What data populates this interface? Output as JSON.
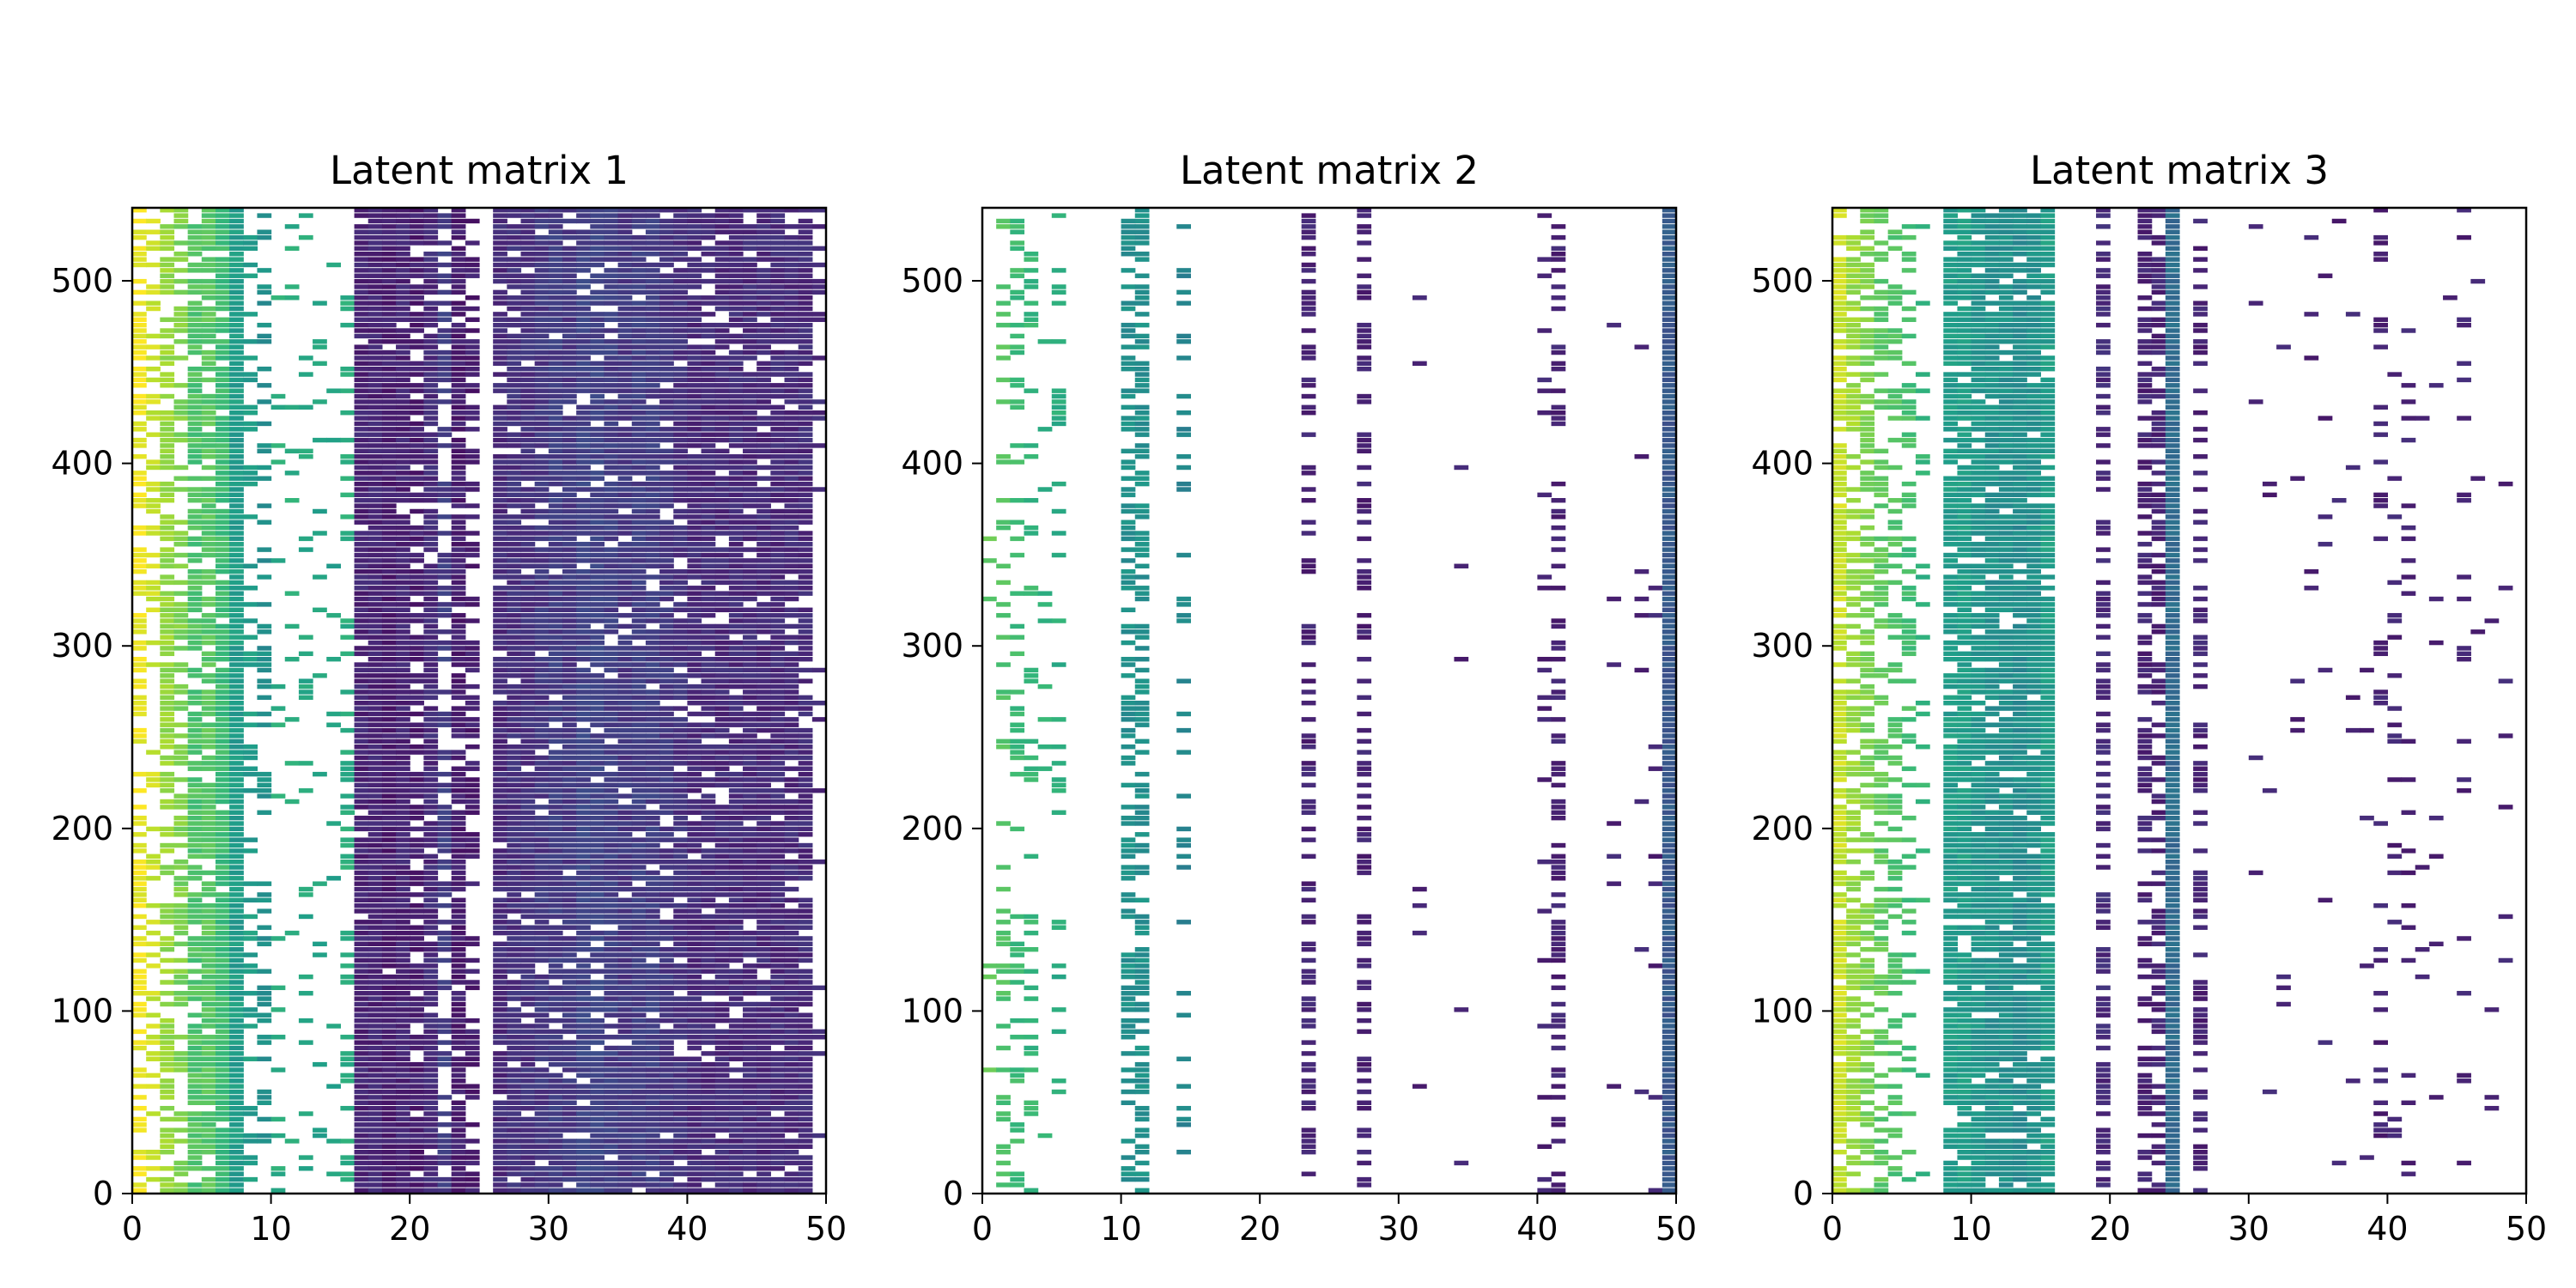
{
  "chart_data": [
    {
      "type": "heatmap",
      "title": "Latent matrix 1",
      "xlim": [
        0,
        50
      ],
      "ylim": [
        0,
        540
      ],
      "xticks": [
        0,
        10,
        20,
        30,
        40,
        50
      ],
      "yticks": [
        0,
        100,
        200,
        300,
        400,
        500
      ],
      "grid": false,
      "colormap": "viridis",
      "missing_color": "#ffffff",
      "column_values": [
        0.98,
        0.92,
        0.84,
        0.8,
        0.72,
        0.74,
        0.68,
        0.55,
        0.55,
        0.5,
        0.62,
        0.62,
        0.6,
        0.58,
        0.58,
        0.62,
        0.1,
        0.1,
        0.08,
        0.1,
        0.08,
        0.12,
        0.18,
        0.08,
        0.08,
        0.08,
        0.12,
        0.14,
        0.14,
        0.16,
        0.18,
        0.16,
        0.2,
        0.2,
        0.18,
        0.16,
        0.18,
        0.18,
        0.16,
        0.14,
        0.12,
        0.12,
        0.12,
        0.12,
        0.12,
        0.12,
        0.12,
        0.12,
        0.12,
        0.12
      ],
      "column_density": [
        0.65,
        0.45,
        0.75,
        0.55,
        0.85,
        0.85,
        0.95,
        1.0,
        0.3,
        0.3,
        0.12,
        0.1,
        0.12,
        0.12,
        0.1,
        0.3,
        0.95,
        1.0,
        0.98,
        0.98,
        0.75,
        0.95,
        0.5,
        0.9,
        0.5,
        0.0,
        0.92,
        0.92,
        0.92,
        0.92,
        0.92,
        0.92,
        0.92,
        0.92,
        0.92,
        0.92,
        0.92,
        0.92,
        0.92,
        0.92,
        0.92,
        0.88,
        0.92,
        0.92,
        0.92,
        0.92,
        0.92,
        0.92,
        0.92,
        0.1
      ]
    },
    {
      "type": "heatmap",
      "title": "Latent matrix 2",
      "xlim": [
        0,
        50
      ],
      "ylim": [
        0,
        540
      ],
      "xticks": [
        0,
        10,
        20,
        30,
        40,
        50
      ],
      "yticks": [
        0,
        100,
        200,
        300,
        400,
        500
      ],
      "grid": false,
      "colormap": "viridis",
      "missing_color": "#ffffff",
      "column_values": [
        0.75,
        0.72,
        0.68,
        0.66,
        0.64,
        0.62,
        0.6,
        0.58,
        0.56,
        0.5,
        0.5,
        0.5,
        0.48,
        0.48,
        0.46,
        0.46,
        0.4,
        0.35,
        0.3,
        0.25,
        0.2,
        0.18,
        0.1,
        0.1,
        0.1,
        0.1,
        0.1,
        0.1,
        0.1,
        0.1,
        0.1,
        0.1,
        0.1,
        0.1,
        0.1,
        0.1,
        0.1,
        0.1,
        0.1,
        0.1,
        0.1,
        0.1,
        0.1,
        0.1,
        0.1,
        0.1,
        0.1,
        0.1,
        0.1,
        0.28
      ],
      "column_density": [
        0.05,
        0.25,
        0.3,
        0.25,
        0.05,
        0.2,
        0.0,
        0.0,
        0.0,
        0.0,
        0.55,
        0.6,
        0.0,
        0.0,
        0.25,
        0.0,
        0.0,
        0.0,
        0.0,
        0.0,
        0.0,
        0.0,
        0.0,
        0.45,
        0.0,
        0.0,
        0.0,
        0.45,
        0.0,
        0.0,
        0.0,
        0.03,
        0.0,
        0.0,
        0.03,
        0.0,
        0.0,
        0.0,
        0.0,
        0.0,
        0.15,
        0.45,
        0.0,
        0.0,
        0.0,
        0.05,
        0.0,
        0.05,
        0.05,
        1.0
      ]
    },
    {
      "type": "heatmap",
      "title": "Latent matrix 3",
      "xlim": [
        0,
        50
      ],
      "ylim": [
        0,
        540
      ],
      "xticks": [
        0,
        10,
        20,
        30,
        40,
        50
      ],
      "yticks": [
        0,
        100,
        200,
        300,
        400,
        500
      ],
      "grid": false,
      "colormap": "viridis",
      "missing_color": "#ffffff",
      "column_values": [
        0.92,
        0.85,
        0.8,
        0.75,
        0.72,
        0.7,
        0.65,
        0.6,
        0.55,
        0.55,
        0.52,
        0.5,
        0.5,
        0.48,
        0.5,
        0.55,
        0.4,
        0.3,
        0.2,
        0.12,
        0.1,
        0.1,
        0.1,
        0.1,
        0.35,
        0.1,
        0.1,
        0.1,
        0.1,
        0.1,
        0.1,
        0.1,
        0.1,
        0.1,
        0.1,
        0.1,
        0.1,
        0.1,
        0.1,
        0.1,
        0.1,
        0.1,
        0.1,
        0.1,
        0.1,
        0.1,
        0.1,
        0.1,
        0.1,
        0.1
      ],
      "column_density": [
        0.8,
        0.65,
        0.6,
        0.55,
        0.45,
        0.35,
        0.1,
        0.0,
        0.85,
        0.9,
        0.9,
        0.9,
        0.92,
        0.92,
        0.92,
        0.85,
        0.0,
        0.0,
        0.0,
        0.6,
        0.0,
        0.0,
        0.6,
        0.55,
        1.0,
        0.0,
        0.45,
        0.0,
        0.0,
        0.0,
        0.03,
        0.03,
        0.03,
        0.03,
        0.03,
        0.03,
        0.03,
        0.03,
        0.03,
        0.15,
        0.1,
        0.1,
        0.03,
        0.03,
        0.03,
        0.12,
        0.03,
        0.03,
        0.03,
        0.0
      ]
    }
  ]
}
